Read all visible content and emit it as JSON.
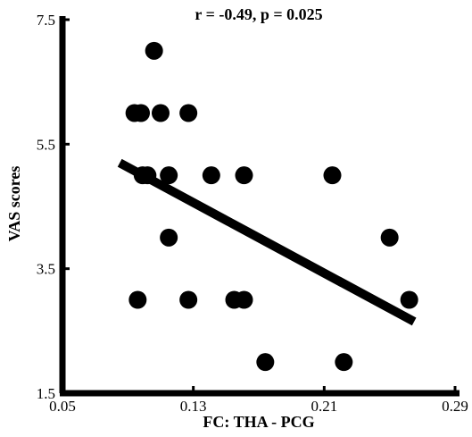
{
  "chart_data": {
    "type": "scatter",
    "title": "r = -0.49, p = 0.025",
    "xlabel": "FC: THA - PCG",
    "ylabel": "VAS scores",
    "xlim": [
      0.05,
      0.29
    ],
    "ylim": [
      1.5,
      7.5
    ],
    "x_ticks": [
      "0.05",
      "0.13",
      "0.21",
      "0.29"
    ],
    "y_ticks": [
      "1.5",
      "3.5",
      "5.5",
      "7.5"
    ],
    "grid": false,
    "legend": "none",
    "marker_color": "#000000",
    "points": [
      {
        "x": 0.106,
        "y": 7.0
      },
      {
        "x": 0.094,
        "y": 6.0
      },
      {
        "x": 0.098,
        "y": 6.0
      },
      {
        "x": 0.11,
        "y": 6.0
      },
      {
        "x": 0.127,
        "y": 6.0
      },
      {
        "x": 0.099,
        "y": 5.0
      },
      {
        "x": 0.102,
        "y": 5.0
      },
      {
        "x": 0.115,
        "y": 5.0
      },
      {
        "x": 0.141,
        "y": 5.0
      },
      {
        "x": 0.161,
        "y": 5.0
      },
      {
        "x": 0.215,
        "y": 5.0
      },
      {
        "x": 0.115,
        "y": 4.0
      },
      {
        "x": 0.25,
        "y": 4.0
      },
      {
        "x": 0.096,
        "y": 3.0
      },
      {
        "x": 0.127,
        "y": 3.0
      },
      {
        "x": 0.155,
        "y": 3.0
      },
      {
        "x": 0.161,
        "y": 3.0
      },
      {
        "x": 0.262,
        "y": 3.0
      },
      {
        "x": 0.174,
        "y": 2.0
      },
      {
        "x": 0.222,
        "y": 2.0
      }
    ],
    "fit_line": {
      "x": [
        0.085,
        0.265
      ],
      "y": [
        5.2,
        2.65
      ],
      "color": "#000000"
    }
  }
}
